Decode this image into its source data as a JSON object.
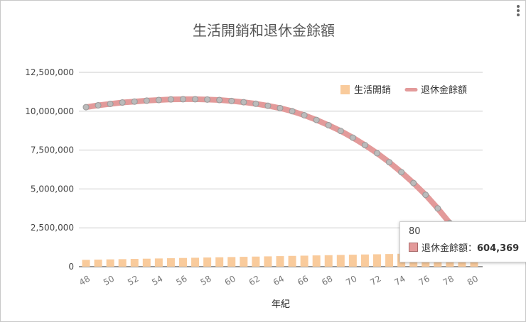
{
  "menu": {
    "icon": "kebab-menu-icon"
  },
  "chart_data": {
    "type": "combo",
    "title": "生活開銷和退休金餘額",
    "xlabel": "年紀",
    "ylabel": "",
    "ylim": [
      0,
      12500000
    ],
    "yticks": [
      "0",
      "2,500,000",
      "5,000,000",
      "7,500,000",
      "10,000,000",
      "12,500,000"
    ],
    "ytick_values": [
      0,
      2500000,
      5000000,
      7500000,
      10000000,
      12500000
    ],
    "xtick_labels": [
      "48",
      "50",
      "52",
      "54",
      "56",
      "58",
      "60",
      "62",
      "64",
      "66",
      "68",
      "70",
      "72",
      "74",
      "76",
      "78",
      "80"
    ],
    "x": [
      48,
      49,
      50,
      51,
      52,
      53,
      54,
      55,
      56,
      57,
      58,
      59,
      60,
      61,
      62,
      63,
      64,
      65,
      66,
      67,
      68,
      69,
      70,
      71,
      72,
      73,
      74,
      75,
      76,
      77,
      78,
      79,
      80
    ],
    "legend_position": "top-right",
    "grid": true,
    "series": [
      {
        "name": "生活開銷",
        "kind": "bar",
        "color": "#f9cb9c",
        "values": [
          440000,
          455000,
          470000,
          485000,
          500000,
          515000,
          530000,
          545000,
          560000,
          575000,
          590000,
          605000,
          620000,
          635000,
          650000,
          665000,
          680000,
          695000,
          710000,
          725000,
          740000,
          755000,
          770000,
          785000,
          800000,
          815000,
          830000,
          845000,
          860000,
          875000,
          890000,
          905000,
          920000
        ]
      },
      {
        "name": "退休金餘額",
        "kind": "line",
        "color": "#e39a9a",
        "values": [
          10260000,
          10380000,
          10470000,
          10560000,
          10620000,
          10680000,
          10720000,
          10760000,
          10770000,
          10770000,
          10750000,
          10720000,
          10660000,
          10580000,
          10480000,
          10350000,
          10200000,
          10000000,
          9740000,
          9440000,
          9100000,
          8730000,
          8300000,
          7820000,
          7300000,
          6720000,
          6080000,
          5380000,
          4620000,
          3750000,
          2800000,
          1740000,
          604369
        ]
      }
    ],
    "tooltip": {
      "title": "80",
      "label": "退休金餘額：",
      "value": "604,369"
    }
  }
}
